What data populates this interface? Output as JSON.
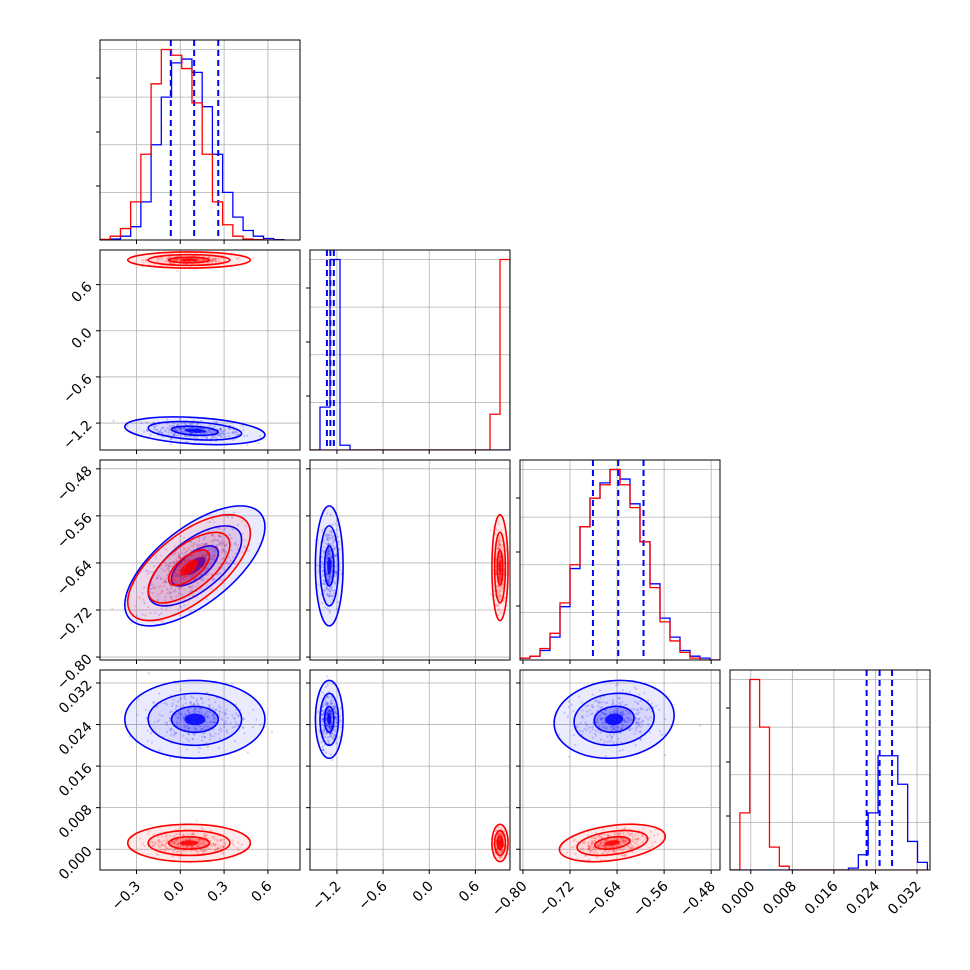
{
  "chart_data": {
    "type": "corner",
    "grid": true,
    "levels": [
      0.393,
      0.865,
      0.989
    ],
    "colors": {
      "blue": "#0000ff",
      "red": "#ff0000"
    },
    "parameters": [
      {
        "ticks": [
          -0.3,
          0.0,
          0.3,
          0.6
        ],
        "tick_labels": [
          "−0.3",
          "0.0",
          "0.3",
          "0.6"
        ],
        "range": [
          -0.55,
          0.82
        ]
      },
      {
        "ticks": [
          -1.2,
          -0.6,
          0.0,
          0.6
        ],
        "tick_labels": [
          "−1.2",
          "−0.6",
          "0.0",
          "0.6"
        ],
        "range": [
          -1.55,
          1.05
        ]
      },
      {
        "ticks": [
          -0.8,
          -0.72,
          -0.64,
          -0.56,
          -0.48
        ],
        "tick_labels": [
          "−0.80",
          "−0.72",
          "−0.64",
          "−0.56",
          "−0.48"
        ],
        "range": [
          -0.805,
          -0.465
        ]
      },
      {
        "ticks": [
          0.0,
          0.008,
          0.016,
          0.024,
          0.032
        ],
        "tick_labels": [
          "0.000",
          "0.008",
          "0.016",
          "0.024",
          "0.032"
        ],
        "range": [
          -0.004,
          0.0345
        ]
      }
    ],
    "series": [
      {
        "color": "blue",
        "quantiles": [
          [
            -0.065,
            0.095,
            0.26
          ],
          [
            -1.33,
            -1.285,
            -1.24
          ],
          [
            -0.681,
            -0.638,
            -0.595
          ],
          [
            0.0223,
            0.0248,
            0.0272
          ]
        ],
        "means": [
          0.1,
          -1.3,
          -0.645,
          0.025
        ],
        "sigmas": [
          0.16,
          0.06,
          0.034,
          0.0025
        ],
        "correlations": [
          [
            1,
            -0.3,
            0.65,
            0
          ],
          [
            -0.3,
            1,
            0,
            0
          ],
          [
            0.65,
            0,
            1,
            0.1
          ],
          [
            0,
            0,
            0.1,
            1
          ]
        ],
        "histograms": [
          {
            "edges": [
              -0.55,
              -0.48,
              -0.41,
              -0.34,
              -0.27,
              -0.2,
              -0.13,
              -0.06,
              0.01,
              0.08,
              0.15,
              0.22,
              0.29,
              0.36,
              0.43,
              0.5,
              0.57,
              0.64,
              0.71
            ],
            "counts": [
              0.2,
              0.5,
              2,
              7,
              20,
              50,
              75,
              93,
              95,
              88,
              70,
              45,
              25,
              12,
              5,
              2,
              0.8,
              0.2
            ]
          },
          {
            "edges": [
              -1.55,
              -1.42,
              -1.29,
              -1.16,
              -1.03,
              -0.9,
              -0.77,
              -0.64,
              -0.51,
              -0.38,
              -0.25,
              -0.12,
              0.01,
              0.14,
              0.27,
              0.4,
              0.53,
              0.66,
              0.79,
              0.92,
              1.05
            ],
            "counts": [
              0,
              18,
              80,
              2,
              0,
              0,
              0,
              0,
              0,
              0,
              0,
              0,
              0,
              0,
              0,
              0,
              0,
              0,
              0,
              0
            ]
          },
          {
            "edges": [
              -0.805,
              -0.788,
              -0.771,
              -0.754,
              -0.737,
              -0.72,
              -0.703,
              -0.686,
              -0.669,
              -0.652,
              -0.635,
              -0.618,
              -0.601,
              -0.584,
              -0.567,
              -0.55,
              -0.533,
              -0.516,
              -0.499,
              -0.482,
              -0.465
            ],
            "counts": [
              1,
              2,
              5,
              12,
              28,
              48,
              70,
              85,
              93,
              100,
              95,
              82,
              62,
              40,
              22,
              12,
              5,
              2,
              1,
              0
            ]
          },
          {
            "edges": [
              -0.004,
              -0.0021,
              -0.0002,
              0.0017,
              0.0036,
              0.0055,
              0.0074,
              0.0093,
              0.0112,
              0.0131,
              0.015,
              0.0169,
              0.0188,
              0.0207,
              0.0226,
              0.0245,
              0.0264,
              0.0283,
              0.0302,
              0.0321,
              0.034
            ],
            "counts": [
              0,
              0,
              0,
              0,
              0,
              0,
              0,
              0,
              0,
              0,
              0,
              0,
              1,
              8,
              30,
              60,
              60,
              45,
              15,
              4
            ]
          }
        ]
      },
      {
        "color": "red",
        "quantiles": [
          null,
          null,
          null,
          null
        ],
        "means": [
          0.06,
          0.92,
          -0.648,
          0.0012
        ],
        "sigmas": [
          0.14,
          0.035,
          0.03,
          0.0012
        ],
        "correlations": [
          [
            1,
            0,
            0.65,
            0
          ],
          [
            0,
            1,
            0,
            0
          ],
          [
            0.65,
            0,
            1,
            0.35
          ],
          [
            0,
            0,
            0.35,
            1
          ]
        ],
        "histograms": [
          {
            "edges": [
              -0.55,
              -0.48,
              -0.41,
              -0.34,
              -0.27,
              -0.2,
              -0.13,
              -0.06,
              0.01,
              0.08,
              0.15,
              0.22,
              0.29,
              0.36,
              0.43,
              0.5,
              0.57,
              0.64,
              0.71
            ],
            "counts": [
              0.3,
              2,
              6,
              20,
              45,
              82,
              100,
              97,
              90,
              72,
              45,
              20,
              8,
              2,
              0.5,
              0.2,
              0,
              0
            ]
          },
          {
            "edges": [
              -1.55,
              -1.42,
              -1.29,
              -1.16,
              -1.03,
              -0.9,
              -0.77,
              -0.64,
              -0.51,
              -0.38,
              -0.25,
              -0.12,
              0.01,
              0.14,
              0.27,
              0.4,
              0.53,
              0.66,
              0.79,
              0.92,
              1.05
            ],
            "counts": [
              0,
              0,
              0,
              0,
              0,
              0,
              0,
              0,
              0,
              0,
              0,
              0,
              0,
              0,
              0,
              0,
              0,
              0,
              15,
              80
            ]
          },
          {
            "edges": [
              -0.805,
              -0.788,
              -0.771,
              -0.754,
              -0.737,
              -0.72,
              -0.703,
              -0.686,
              -0.669,
              -0.652,
              -0.635,
              -0.618,
              -0.601,
              -0.584,
              -0.567,
              -0.55,
              -0.533,
              -0.516,
              -0.499,
              -0.482,
              -0.465
            ],
            "counts": [
              1,
              2,
              6,
              14,
              30,
              50,
              70,
              85,
              92,
              100,
              92,
              80,
              62,
              38,
              20,
              10,
              4,
              1,
              0,
              0
            ]
          },
          {
            "edges": [
              -0.004,
              -0.0021,
              -0.0002,
              0.0017,
              0.0036,
              0.0055,
              0.0074,
              0.0093,
              0.0112,
              0.0131,
              0.015,
              0.0169,
              0.0188,
              0.0207,
              0.0226,
              0.0245,
              0.0264,
              0.0283,
              0.0302,
              0.0321,
              0.034
            ],
            "counts": [
              0,
              30,
              100,
              75,
              12,
              2,
              0,
              0,
              0,
              0,
              0,
              0,
              0,
              0,
              0,
              0,
              0,
              0,
              0,
              0
            ]
          }
        ]
      }
    ]
  }
}
